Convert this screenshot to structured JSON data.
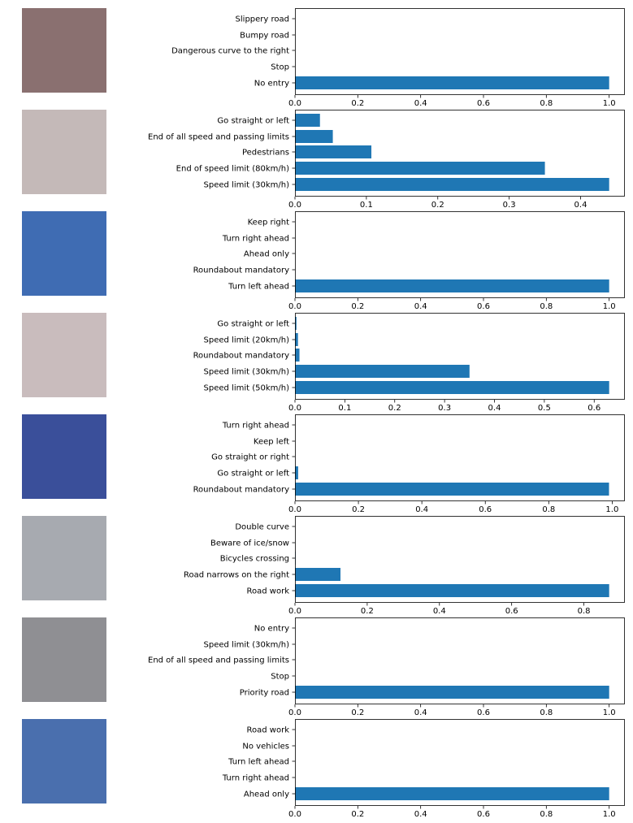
{
  "colors": {
    "bar": "#1f77b4",
    "axis": "#000000",
    "background": "#ffffff"
  },
  "chart_data": [
    {
      "type": "bar",
      "orientation": "horizontal",
      "sign_image": "no-entry-sign",
      "categories": [
        "No entry",
        "Stop",
        "Dangerous curve to the right",
        "Bumpy road",
        "Slippery road"
      ],
      "values": [
        1.0,
        0.0,
        0.0,
        0.0,
        0.0
      ],
      "xlim": [
        0,
        1.05
      ],
      "xticks": [
        0.0,
        0.2,
        0.4,
        0.6,
        0.8,
        1.0
      ],
      "xtick_labels": [
        "0.0",
        "0.2",
        "0.4",
        "0.6",
        "0.8",
        "1.0"
      ]
    },
    {
      "type": "bar",
      "orientation": "horizontal",
      "sign_image": "speed-limit-30-sign",
      "categories": [
        "Speed limit (30km/h)",
        "End of speed limit (80km/h)",
        "Pedestrians",
        "End of all speed and passing limits",
        "Go straight or left"
      ],
      "values": [
        0.44,
        0.35,
        0.107,
        0.053,
        0.035
      ],
      "xlim": [
        0,
        0.462
      ],
      "xticks": [
        0.0,
        0.1,
        0.2,
        0.3,
        0.4
      ],
      "xtick_labels": [
        "0.0",
        "0.1",
        "0.2",
        "0.3",
        "0.4"
      ]
    },
    {
      "type": "bar",
      "orientation": "horizontal",
      "sign_image": "turn-left-ahead-sign",
      "categories": [
        "Turn left ahead",
        "Roundabout mandatory",
        "Ahead only",
        "Turn right ahead",
        "Keep right"
      ],
      "values": [
        1.0,
        0.0,
        0.0,
        0.0,
        0.0
      ],
      "xlim": [
        0,
        1.05
      ],
      "xticks": [
        0.0,
        0.2,
        0.4,
        0.6,
        0.8,
        1.0
      ],
      "xtick_labels": [
        "0.0",
        "0.2",
        "0.4",
        "0.6",
        "0.8",
        "1.0"
      ]
    },
    {
      "type": "bar",
      "orientation": "horizontal",
      "sign_image": "speed-limit-50-sign",
      "categories": [
        "Speed limit (50km/h)",
        "Speed limit (30km/h)",
        "Roundabout mandatory",
        "Speed limit (20km/h)",
        "Go straight or left"
      ],
      "values": [
        0.63,
        0.35,
        0.009,
        0.006,
        0.003
      ],
      "xlim": [
        0,
        0.6615
      ],
      "xticks": [
        0.0,
        0.1,
        0.2,
        0.3,
        0.4,
        0.5,
        0.6
      ],
      "xtick_labels": [
        "0.0",
        "0.1",
        "0.2",
        "0.3",
        "0.4",
        "0.5",
        "0.6"
      ]
    },
    {
      "type": "bar",
      "orientation": "horizontal",
      "sign_image": "roundabout-mandatory-sign",
      "categories": [
        "Roundabout mandatory",
        "Go straight or left",
        "Go straight or right",
        "Keep left",
        "Turn right ahead"
      ],
      "values": [
        0.99,
        0.01,
        0.0,
        0.0,
        0.0
      ],
      "xlim": [
        0,
        1.04
      ],
      "xticks": [
        0.0,
        0.2,
        0.4,
        0.6,
        0.8,
        1.0
      ],
      "xtick_labels": [
        "0.0",
        "0.2",
        "0.4",
        "0.6",
        "0.8",
        "1.0"
      ]
    },
    {
      "type": "bar",
      "orientation": "horizontal",
      "sign_image": "road-work-sign",
      "categories": [
        "Road work",
        "Road narrows on the right",
        "Bicycles crossing",
        "Beware of ice/snow",
        "Double curve"
      ],
      "values": [
        0.87,
        0.126,
        0.001,
        0.0,
        0.0
      ],
      "xlim": [
        0,
        0.9135
      ],
      "xticks": [
        0.0,
        0.2,
        0.4,
        0.6,
        0.8
      ],
      "xtick_labels": [
        "0.0",
        "0.2",
        "0.4",
        "0.6",
        "0.8"
      ]
    },
    {
      "type": "bar",
      "orientation": "horizontal",
      "sign_image": "priority-road-sign",
      "categories": [
        "Priority road",
        "Stop",
        "End of all speed and passing limits",
        "Speed limit (30km/h)",
        "No entry"
      ],
      "values": [
        1.0,
        0.0,
        0.0,
        0.0,
        0.0
      ],
      "xlim": [
        0,
        1.05
      ],
      "xticks": [
        0.0,
        0.2,
        0.4,
        0.6,
        0.8,
        1.0
      ],
      "xtick_labels": [
        "0.0",
        "0.2",
        "0.4",
        "0.6",
        "0.8",
        "1.0"
      ]
    },
    {
      "type": "bar",
      "orientation": "horizontal",
      "sign_image": "ahead-only-sign",
      "categories": [
        "Ahead only",
        "Turn right ahead",
        "Turn left ahead",
        "No vehicles",
        "Road work"
      ],
      "values": [
        1.0,
        0.0,
        0.0,
        0.0,
        0.0
      ],
      "xlim": [
        0,
        1.05
      ],
      "xticks": [
        0.0,
        0.2,
        0.4,
        0.6,
        0.8,
        1.0
      ],
      "xtick_labels": [
        "0.0",
        "0.2",
        "0.4",
        "0.6",
        "0.8",
        "1.0"
      ]
    }
  ]
}
